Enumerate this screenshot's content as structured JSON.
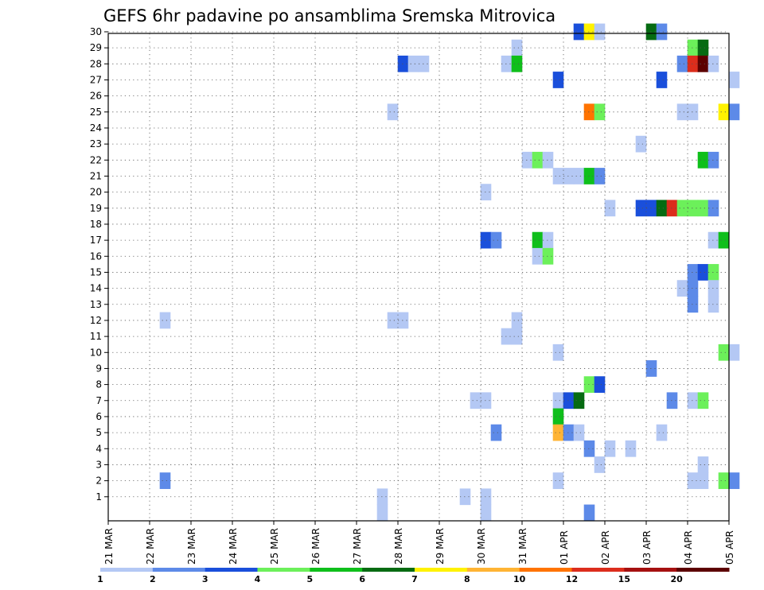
{
  "chart_data": {
    "type": "heatmap",
    "title": "GEFS 6hr padavine po ansamblima Sremska Mitrovica",
    "xlabel": "",
    "ylabel": "",
    "x_ticks": [
      "21 MAR",
      "22 MAR",
      "23 MAR",
      "24 MAR",
      "25 MAR",
      "26 MAR",
      "27 MAR",
      "28 MAR",
      "29 MAR",
      "30 MAR",
      "31 MAR",
      "01 APR",
      "02 APR",
      "03 APR",
      "04 APR",
      "05 APR"
    ],
    "y_ticks": [
      1,
      2,
      3,
      4,
      5,
      6,
      7,
      8,
      9,
      10,
      11,
      12,
      13,
      14,
      15,
      16,
      17,
      18,
      19,
      20,
      21,
      22,
      23,
      24,
      25,
      26,
      27,
      28,
      29,
      30
    ],
    "x_unit": "6-hour steps from 21 MAR",
    "grid": true,
    "colorbar": {
      "labels": [
        "1",
        "2",
        "3",
        "4",
        "5",
        "6",
        "7",
        "8",
        "10",
        "12",
        "15",
        "20"
      ],
      "colors": [
        "#b4c8f4",
        "#5d8ae8",
        "#1a4fdb",
        "#6cf05a",
        "#0fbf1b",
        "#066b12",
        "#fff200",
        "#ffb434",
        "#ff7300",
        "#dc2d1c",
        "#a51010",
        "#5c0000"
      ]
    },
    "cells": [
      [
        30,
        11.25,
        3
      ],
      [
        30,
        11.5,
        7
      ],
      [
        30,
        11.75,
        1
      ],
      [
        30,
        13.0,
        6
      ],
      [
        30,
        13.25,
        2
      ],
      [
        29,
        9.75,
        1
      ],
      [
        29,
        14.0,
        4
      ],
      [
        29,
        14.25,
        6
      ],
      [
        28,
        7.0,
        3
      ],
      [
        28,
        7.25,
        1
      ],
      [
        28,
        7.5,
        1
      ],
      [
        28,
        9.5,
        1
      ],
      [
        28,
        9.75,
        5
      ],
      [
        28,
        13.75,
        2
      ],
      [
        28,
        14.0,
        10
      ],
      [
        28,
        14.25,
        12
      ],
      [
        28,
        14.5,
        1
      ],
      [
        27,
        10.75,
        3
      ],
      [
        27,
        13.25,
        3
      ],
      [
        27,
        15.0,
        1
      ],
      [
        25,
        6.75,
        1
      ],
      [
        25,
        11.5,
        9
      ],
      [
        25,
        11.75,
        4
      ],
      [
        25,
        13.75,
        1
      ],
      [
        25,
        14.0,
        1
      ],
      [
        25,
        14.75,
        7
      ],
      [
        25,
        15.0,
        2
      ],
      [
        23,
        12.75,
        1
      ],
      [
        22,
        10.0,
        1
      ],
      [
        22,
        10.25,
        4
      ],
      [
        22,
        10.5,
        1
      ],
      [
        22,
        14.25,
        5
      ],
      [
        22,
        14.5,
        2
      ],
      [
        21,
        10.75,
        1
      ],
      [
        21,
        11.0,
        1
      ],
      [
        21,
        11.25,
        1
      ],
      [
        21,
        11.5,
        5
      ],
      [
        21,
        11.75,
        2
      ],
      [
        20,
        9.0,
        1
      ],
      [
        19,
        12.0,
        1
      ],
      [
        19,
        12.75,
        3
      ],
      [
        19,
        13.0,
        3
      ],
      [
        19,
        13.25,
        6
      ],
      [
        19,
        13.5,
        10
      ],
      [
        19,
        13.75,
        4
      ],
      [
        19,
        14.0,
        4
      ],
      [
        19,
        14.25,
        4
      ],
      [
        19,
        14.5,
        2
      ],
      [
        17,
        9.0,
        3
      ],
      [
        17,
        9.25,
        2
      ],
      [
        17,
        10.25,
        5
      ],
      [
        17,
        10.5,
        1
      ],
      [
        17,
        14.5,
        1
      ],
      [
        17,
        14.75,
        5
      ],
      [
        16,
        10.25,
        1
      ],
      [
        16,
        10.5,
        4
      ],
      [
        15,
        14.0,
        2
      ],
      [
        15,
        14.25,
        3
      ],
      [
        15,
        14.5,
        4
      ],
      [
        14,
        13.75,
        1
      ],
      [
        14,
        14.0,
        2
      ],
      [
        14,
        14.5,
        1
      ],
      [
        13,
        14.0,
        2
      ],
      [
        13,
        14.5,
        1
      ],
      [
        12,
        1.25,
        1
      ],
      [
        12,
        6.75,
        1
      ],
      [
        12,
        7.0,
        1
      ],
      [
        12,
        9.75,
        1
      ],
      [
        11,
        9.5,
        1
      ],
      [
        11,
        9.75,
        1
      ],
      [
        10,
        10.75,
        1
      ],
      [
        10,
        14.75,
        4
      ],
      [
        10,
        15.0,
        1
      ],
      [
        9,
        13.0,
        2
      ],
      [
        8,
        11.5,
        4
      ],
      [
        8,
        11.75,
        3
      ],
      [
        7,
        8.75,
        1
      ],
      [
        7,
        9.0,
        1
      ],
      [
        7,
        10.75,
        1
      ],
      [
        7,
        11.0,
        3
      ],
      [
        7,
        11.25,
        6
      ],
      [
        7,
        13.5,
        2
      ],
      [
        7,
        14.0,
        1
      ],
      [
        7,
        14.25,
        4
      ],
      [
        6,
        10.75,
        5
      ],
      [
        5,
        9.25,
        2
      ],
      [
        5,
        10.75,
        8
      ],
      [
        5,
        11.0,
        2
      ],
      [
        5,
        11.25,
        1
      ],
      [
        5,
        13.25,
        1
      ],
      [
        4,
        11.5,
        2
      ],
      [
        4,
        12.0,
        1
      ],
      [
        4,
        12.5,
        1
      ],
      [
        3,
        11.75,
        1
      ],
      [
        3,
        14.25,
        1
      ],
      [
        2,
        1.25,
        2
      ],
      [
        2,
        10.75,
        1
      ],
      [
        2,
        14.0,
        1
      ],
      [
        2,
        14.25,
        1
      ],
      [
        2,
        14.75,
        4
      ],
      [
        2,
        15.0,
        2
      ],
      [
        1,
        6.5,
        1
      ],
      [
        1,
        8.5,
        1
      ],
      [
        1,
        9.0,
        1
      ],
      [
        0,
        11.5,
        2
      ],
      [
        0,
        6.5,
        1
      ],
      [
        0,
        9.0,
        1
      ]
    ]
  }
}
